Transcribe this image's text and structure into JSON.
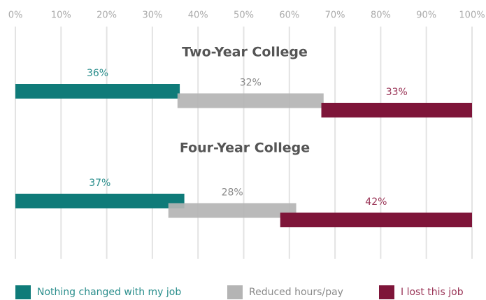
{
  "chart_data": {
    "type": "bar",
    "categories": [
      "Two-Year College",
      "Four-Year College"
    ],
    "series": [
      {
        "name": "Nothing changed with my job",
        "color": "#0f7b79",
        "label_color": "#2a8e8c",
        "values": [
          36,
          37
        ],
        "value_labels": [
          "36%",
          "37%"
        ]
      },
      {
        "name": "Reduced hours/pay",
        "color": "#b4b4b4",
        "label_color": "#8a8a8a",
        "values": [
          32,
          28
        ],
        "value_labels": [
          "32%",
          "28%"
        ]
      },
      {
        "name": "I lost this job",
        "color": "#7e1539",
        "label_color": "#9a3557",
        "values": [
          33,
          42
        ],
        "value_labels": [
          "33%",
          "42%"
        ]
      }
    ],
    "xlim": [
      0,
      100
    ],
    "xticks": [
      {
        "value": 0,
        "label": "0%"
      },
      {
        "value": 10,
        "label": "10%"
      },
      {
        "value": 20,
        "label": "20%"
      },
      {
        "value": 30,
        "label": "30%"
      },
      {
        "value": 40,
        "label": "40%"
      },
      {
        "value": 50,
        "label": "50%"
      },
      {
        "value": 60,
        "label": "60%"
      },
      {
        "value": 70,
        "label": "70%"
      },
      {
        "value": 80,
        "label": "80%"
      },
      {
        "value": 90,
        "label": "90%"
      },
      {
        "value": 100,
        "label": "100%"
      }
    ],
    "grid": true,
    "legend": "bottom"
  }
}
